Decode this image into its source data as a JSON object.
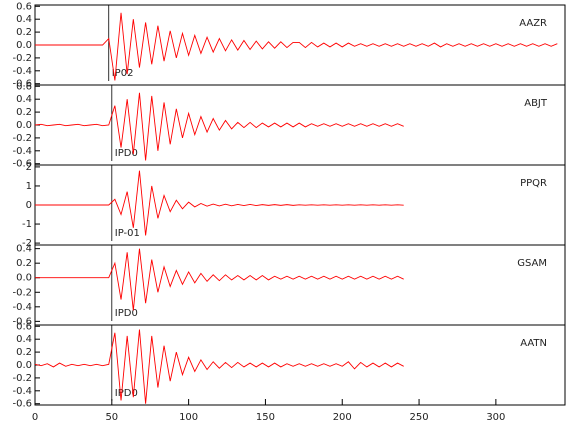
{
  "chart_data": [
    {
      "type": "line",
      "station": "AAZR",
      "phase": "IP02",
      "pick": 48,
      "color": "#ff0000",
      "xlim": [
        0,
        345
      ],
      "ylim": [
        -0.62,
        0.62
      ],
      "yticks": [
        -0.6,
        -0.4,
        -0.2,
        {
          "value": 0,
          "label": "0.0"
        },
        0.2,
        0.4,
        0.6
      ],
      "x": [
        0,
        4,
        8,
        12,
        16,
        20,
        24,
        28,
        32,
        36,
        40,
        44,
        48,
        52,
        56,
        60,
        64,
        68,
        72,
        76,
        80,
        84,
        88,
        92,
        96,
        100,
        104,
        108,
        112,
        116,
        120,
        124,
        128,
        132,
        136,
        140,
        144,
        148,
        152,
        156,
        160,
        164,
        168,
        172,
        176,
        180,
        184,
        188,
        192,
        196,
        200,
        204,
        208,
        212,
        216,
        220,
        224,
        228,
        232,
        236,
        240,
        244,
        248,
        252,
        256,
        260,
        264,
        268,
        272,
        276,
        280,
        284,
        288,
        292,
        296,
        300,
        304,
        308,
        312,
        316,
        320,
        324,
        328,
        332,
        336,
        340
      ],
      "values": [
        0,
        0,
        0,
        0,
        0,
        0,
        0,
        0,
        0,
        0,
        0,
        0,
        0.1,
        -0.55,
        0.5,
        -0.45,
        0.4,
        -0.35,
        0.35,
        -0.3,
        0.3,
        -0.25,
        0.22,
        -0.2,
        0.18,
        -0.16,
        0.15,
        -0.13,
        0.12,
        -0.11,
        0.1,
        -0.09,
        0.08,
        -0.08,
        0.07,
        -0.07,
        0.06,
        -0.06,
        0.05,
        -0.05,
        0.05,
        -0.04,
        0.04,
        0.04,
        -0.04,
        0.04,
        -0.03,
        0.03,
        -0.03,
        0.03,
        -0.03,
        0.03,
        -0.02,
        0.02,
        -0.02,
        0.02,
        -0.02,
        0.02,
        -0.02,
        0.02,
        -0.02,
        0.02,
        -0.02,
        0.02,
        -0.02,
        0.03,
        -0.03,
        0.02,
        -0.02,
        0.02,
        -0.02,
        0.02,
        -0.02,
        0.02,
        -0.02,
        0.02,
        -0.02,
        0.02,
        -0.02,
        0.02,
        -0.02,
        0.02,
        -0.02,
        0.02,
        -0.02,
        0.02
      ]
    },
    {
      "type": "line",
      "station": "ABJT",
      "phase": "IPD0",
      "pick": 50,
      "color": "#ff0000",
      "xlim": [
        0,
        345
      ],
      "ylim": [
        -0.62,
        0.62
      ],
      "yticks": [
        -0.6,
        -0.4,
        -0.2,
        {
          "value": 0,
          "label": "0.0"
        },
        0.2,
        0.4,
        0.6
      ],
      "x": [
        0,
        4,
        8,
        12,
        16,
        20,
        24,
        28,
        32,
        36,
        40,
        44,
        48,
        52,
        56,
        60,
        64,
        68,
        72,
        76,
        80,
        84,
        88,
        92,
        96,
        100,
        104,
        108,
        112,
        116,
        120,
        124,
        128,
        132,
        136,
        140,
        144,
        148,
        152,
        156,
        160,
        164,
        168,
        172,
        176,
        180,
        184,
        188,
        192,
        196,
        200,
        204,
        208,
        212,
        216,
        220,
        224,
        228,
        232,
        236,
        240
      ],
      "values": [
        0,
        0.01,
        -0.01,
        0,
        0.01,
        -0.01,
        0,
        0.01,
        -0.01,
        0,
        0.01,
        -0.01,
        0,
        0.3,
        -0.35,
        0.4,
        -0.45,
        0.5,
        -0.55,
        0.45,
        -0.4,
        0.35,
        -0.3,
        0.25,
        -0.2,
        0.18,
        -0.15,
        0.13,
        -0.11,
        0.1,
        -0.08,
        0.07,
        -0.06,
        0.04,
        -0.04,
        0.04,
        -0.04,
        0.03,
        -0.03,
        0.03,
        -0.03,
        0.03,
        -0.03,
        0.03,
        -0.03,
        0.02,
        -0.02,
        0.02,
        -0.02,
        0.02,
        -0.02,
        0.02,
        -0.02,
        0.02,
        -0.02,
        0.02,
        -0.02,
        0.02,
        -0.02,
        0.02,
        -0.02
      ]
    },
    {
      "type": "line",
      "station": "PPQR",
      "phase": "IP-01",
      "pick": 50,
      "color": "#ff0000",
      "xlim": [
        0,
        345
      ],
      "ylim": [
        -2.1,
        2.1
      ],
      "yticks": [
        -2,
        -1,
        0,
        1,
        2
      ],
      "x": [
        0,
        4,
        8,
        12,
        16,
        20,
        24,
        28,
        32,
        36,
        40,
        44,
        48,
        52,
        56,
        60,
        64,
        68,
        72,
        76,
        80,
        84,
        88,
        92,
        96,
        100,
        104,
        108,
        112,
        116,
        120,
        124,
        128,
        132,
        136,
        140,
        144,
        148,
        152,
        156,
        160,
        164,
        168,
        172,
        176,
        180,
        184,
        188,
        192,
        196,
        200,
        204,
        208,
        212,
        216,
        220,
        224,
        228,
        232,
        236,
        240
      ],
      "values": [
        0,
        0,
        0,
        0,
        0,
        0,
        0,
        0,
        0,
        0,
        0,
        0,
        0,
        0.3,
        -0.5,
        0.7,
        -1.2,
        1.8,
        -1.6,
        1.0,
        -0.7,
        0.5,
        -0.35,
        0.25,
        -0.2,
        0.15,
        -0.1,
        0.08,
        -0.06,
        0.05,
        -0.05,
        0.04,
        -0.04,
        0.03,
        -0.03,
        0.03,
        -0.03,
        0.02,
        -0.02,
        0.02,
        -0.02,
        0.02,
        -0.02,
        0.01,
        -0.01,
        0.01,
        -0.01,
        0.01,
        -0.01,
        0.01,
        -0.01,
        0.01,
        -0.01,
        0.01,
        -0.01,
        0.01,
        -0.01,
        0.01,
        -0.01,
        0.01,
        -0.01
      ]
    },
    {
      "type": "line",
      "station": "GSAM",
      "phase": "IPD0",
      "pick": 50,
      "color": "#ff0000",
      "xlim": [
        0,
        345
      ],
      "ylim": [
        -0.65,
        0.45
      ],
      "yticks": [
        -0.6,
        -0.4,
        -0.2,
        {
          "value": 0,
          "label": "0.0"
        },
        0.2,
        0.4
      ],
      "x": [
        0,
        4,
        8,
        12,
        16,
        20,
        24,
        28,
        32,
        36,
        40,
        44,
        48,
        52,
        56,
        60,
        64,
        68,
        72,
        76,
        80,
        84,
        88,
        92,
        96,
        100,
        104,
        108,
        112,
        116,
        120,
        124,
        128,
        132,
        136,
        140,
        144,
        148,
        152,
        156,
        160,
        164,
        168,
        172,
        176,
        180,
        184,
        188,
        192,
        196,
        200,
        204,
        208,
        212,
        216,
        220,
        224,
        228,
        232,
        236,
        240
      ],
      "values": [
        0,
        0,
        0,
        0,
        0,
        0,
        0,
        0,
        0,
        0,
        0,
        0,
        0,
        0.2,
        -0.3,
        0.35,
        -0.45,
        0.4,
        -0.35,
        0.25,
        -0.2,
        0.15,
        -0.12,
        0.1,
        -0.09,
        0.08,
        -0.07,
        0.06,
        -0.05,
        0.04,
        -0.04,
        0.04,
        -0.03,
        0.03,
        -0.03,
        0.03,
        -0.03,
        0.03,
        -0.03,
        0.02,
        -0.02,
        0.02,
        -0.02,
        0.02,
        -0.02,
        0.02,
        -0.02,
        0.02,
        -0.02,
        0.02,
        -0.02,
        0.02,
        -0.02,
        0.02,
        -0.02,
        0.02,
        -0.02,
        0.02,
        -0.02,
        0.02,
        -0.02
      ]
    },
    {
      "type": "line",
      "station": "AATN",
      "phase": "IPD0",
      "pick": 50,
      "color": "#ff0000",
      "xlim": [
        0,
        345
      ],
      "ylim": [
        -0.62,
        0.62
      ],
      "yticks": [
        -0.6,
        -0.4,
        -0.2,
        {
          "value": 0,
          "label": "0.0"
        },
        0.2,
        0.4,
        0.6
      ],
      "x": [
        0,
        4,
        8,
        12,
        16,
        20,
        24,
        28,
        32,
        36,
        40,
        44,
        48,
        52,
        56,
        60,
        64,
        68,
        72,
        76,
        80,
        84,
        88,
        92,
        96,
        100,
        104,
        108,
        112,
        116,
        120,
        124,
        128,
        132,
        136,
        140,
        144,
        148,
        152,
        156,
        160,
        164,
        168,
        172,
        176,
        180,
        184,
        188,
        192,
        196,
        200,
        204,
        208,
        212,
        216,
        220,
        224,
        228,
        232,
        236,
        240
      ],
      "values": [
        0.01,
        -0.01,
        0.02,
        -0.03,
        0.03,
        -0.02,
        0.01,
        -0.01,
        0.01,
        -0.01,
        0.01,
        -0.01,
        0.01,
        0.5,
        -0.55,
        0.45,
        -0.5,
        0.55,
        -0.6,
        0.45,
        -0.35,
        0.3,
        -0.25,
        0.2,
        -0.15,
        0.12,
        -0.1,
        0.08,
        -0.07,
        0.05,
        -0.05,
        0.04,
        -0.04,
        0.04,
        -0.03,
        0.03,
        -0.03,
        0.03,
        -0.03,
        0.03,
        -0.03,
        0.02,
        -0.02,
        0.02,
        -0.02,
        0.02,
        -0.02,
        0.02,
        -0.02,
        0.02,
        -0.02,
        0.05,
        -0.06,
        0.04,
        -0.03,
        0.03,
        -0.03,
        0.03,
        -0.03,
        0.03,
        -0.02
      ],
      "xticks": [
        0,
        50,
        100,
        150,
        200,
        250,
        300
      ]
    }
  ]
}
